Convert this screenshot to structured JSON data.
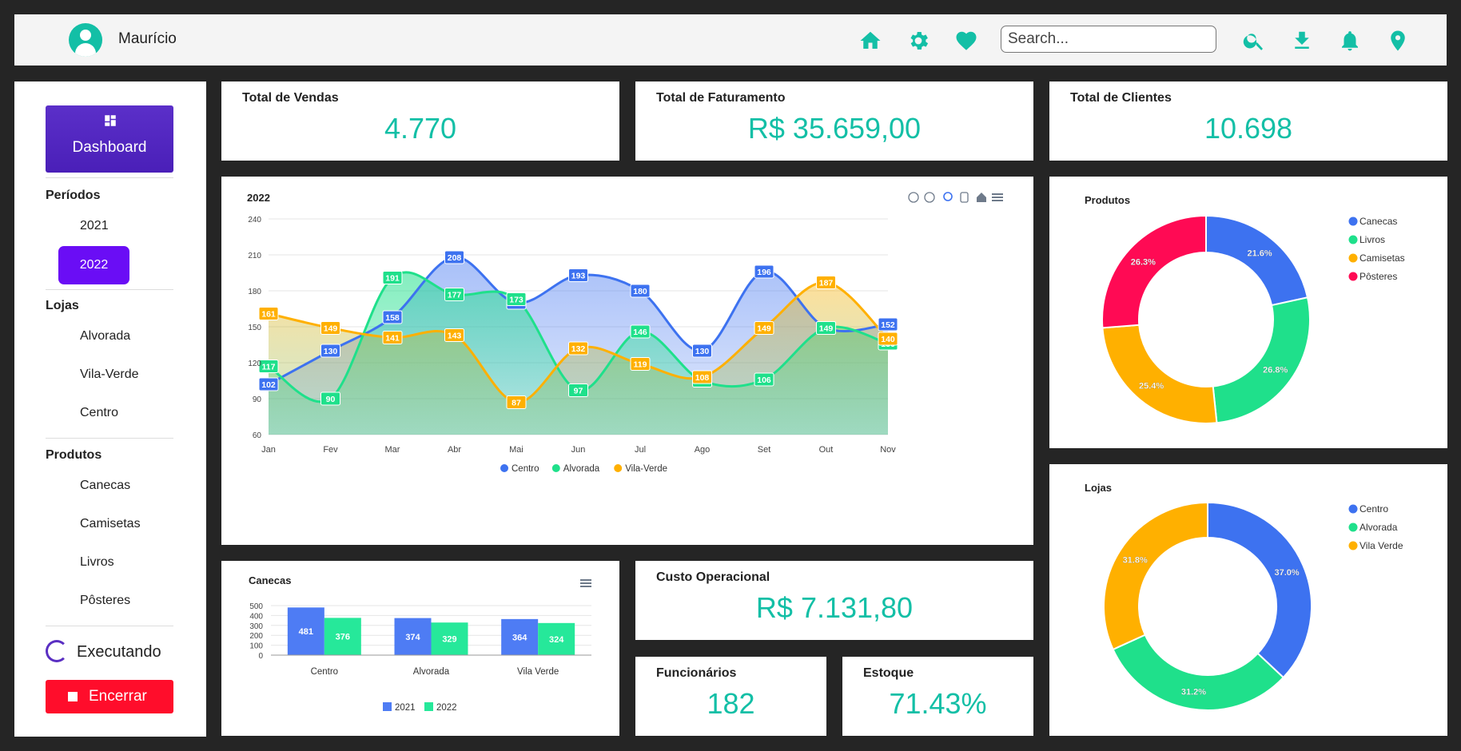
{
  "header": {
    "username": "Maurício",
    "search_placeholder": "Search...",
    "icons": [
      "home-icon",
      "gear-icon",
      "heart-icon",
      "search-icon",
      "download-icon",
      "bell-icon",
      "location-pin-icon"
    ],
    "accent_color": "#13bfa6"
  },
  "sidebar": {
    "dashboard_label": "Dashboard",
    "periods_title": "Períodos",
    "periods": [
      "2021",
      "2022"
    ],
    "active_period": "2022",
    "stores_title": "Lojas",
    "stores": [
      "Alvorada",
      "Vila-Verde",
      "Centro"
    ],
    "products_title": "Produtos",
    "products": [
      "Canecas",
      "Camisetas",
      "Livros",
      "Pôsteres"
    ],
    "status_label": "Executando",
    "stop_label": "Encerrar"
  },
  "kpis": {
    "sales": {
      "title": "Total de Vendas",
      "value": "4.770"
    },
    "revenue": {
      "title": "Total de Faturamento",
      "value": "R$ 35.659,00"
    },
    "clients": {
      "title": "Total de Clientes",
      "value": "10.698"
    },
    "opcost": {
      "title": "Custo Operacional",
      "value": "R$ 7.131,80"
    },
    "employees": {
      "title": "Funcionários",
      "value": "182"
    },
    "stock": {
      "title": "Estoque",
      "value": "71.43%"
    }
  },
  "chart_data": [
    {
      "type": "area",
      "title": "2022",
      "categories": [
        "Jan",
        "Fev",
        "Mar",
        "Abr",
        "Mai",
        "Jun",
        "Jul",
        "Ago",
        "Set",
        "Out",
        "Nov"
      ],
      "ylim": [
        60,
        240
      ],
      "yticks": [
        60,
        90,
        120,
        150,
        180,
        210,
        240
      ],
      "legend": "bottom",
      "series": [
        {
          "name": "Centro",
          "color": "#3d72f0",
          "values": [
            102,
            130,
            158,
            208,
            170,
            193,
            180,
            130,
            196,
            149,
            152
          ]
        },
        {
          "name": "Alvorada",
          "color": "#1fe08b",
          "values": [
            117,
            90,
            191,
            177,
            173,
            97,
            146,
            105,
            106,
            149,
            136
          ]
        },
        {
          "name": "Vila-Verde",
          "color": "#ffb000",
          "values": [
            161,
            149,
            141,
            143,
            87,
            132,
            119,
            108,
            149,
            187,
            140
          ]
        }
      ]
    },
    {
      "type": "bar",
      "title": "Canecas",
      "categories": [
        "Centro",
        "Alvorada",
        "Vila Verde"
      ],
      "ylim": [
        0,
        500
      ],
      "yticks": [
        0,
        100,
        200,
        300,
        400,
        500
      ],
      "legend": "bottom",
      "series": [
        {
          "name": "2021",
          "color": "#4e7cf4",
          "values": [
            481,
            374,
            364
          ]
        },
        {
          "name": "2022",
          "color": "#26e89a",
          "values": [
            376,
            329,
            324
          ]
        }
      ]
    },
    {
      "type": "pie",
      "title": "Produtos",
      "legend": "top-right",
      "labels": [
        "Canecas",
        "Livros",
        "Camisetas",
        "Pôsteres"
      ],
      "values": [
        21.6,
        26.8,
        25.4,
        26.3
      ],
      "colors": [
        "#3d72f0",
        "#1fe08b",
        "#ffb000",
        "#ff0a54"
      ]
    },
    {
      "type": "pie",
      "title": "Lojas",
      "legend": "top-right",
      "labels": [
        "Centro",
        "Alvorada",
        "Vila Verde"
      ],
      "values": [
        37.0,
        31.2,
        31.8
      ],
      "colors": [
        "#3d72f0",
        "#1fe08b",
        "#ffb000"
      ]
    }
  ]
}
